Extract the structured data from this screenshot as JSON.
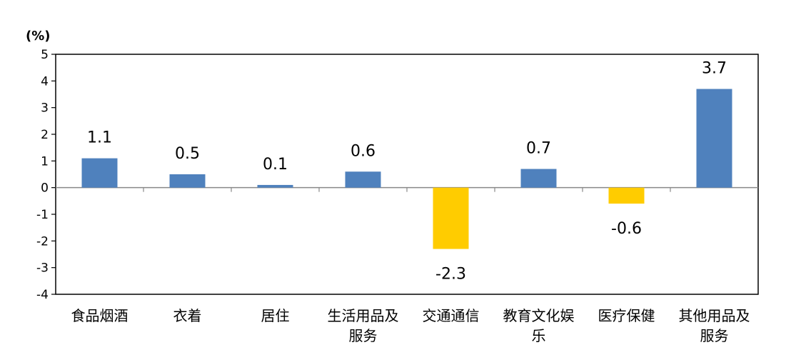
{
  "chart_data": {
    "type": "bar",
    "unit_label": "(%)",
    "categories": [
      [
        "食品烟酒"
      ],
      [
        "衣着"
      ],
      [
        "居住"
      ],
      [
        "生活用品及",
        "服务"
      ],
      [
        "交通通信"
      ],
      [
        "教育文化娱",
        "乐"
      ],
      [
        "医疗保健"
      ],
      [
        "其他用品及",
        "服务"
      ]
    ],
    "values": [
      1.1,
      0.5,
      0.1,
      0.6,
      -2.3,
      0.7,
      -0.6,
      3.7
    ],
    "data_labels": [
      "1.1",
      "0.5",
      "0.1",
      "0.6",
      "-2.3",
      "0.7",
      "-0.6",
      "3.7"
    ],
    "y_ticks": [
      "5",
      "4",
      "3",
      "2",
      "1",
      "0",
      "-1",
      "-2",
      "-3",
      "-4"
    ],
    "ylim": [
      -4,
      5
    ],
    "colors": {
      "positive": "#4f81bd",
      "negative": "#ffcc00",
      "axis": "#000000",
      "zero_line": "#888888"
    },
    "grid": false,
    "legend": "none"
  }
}
